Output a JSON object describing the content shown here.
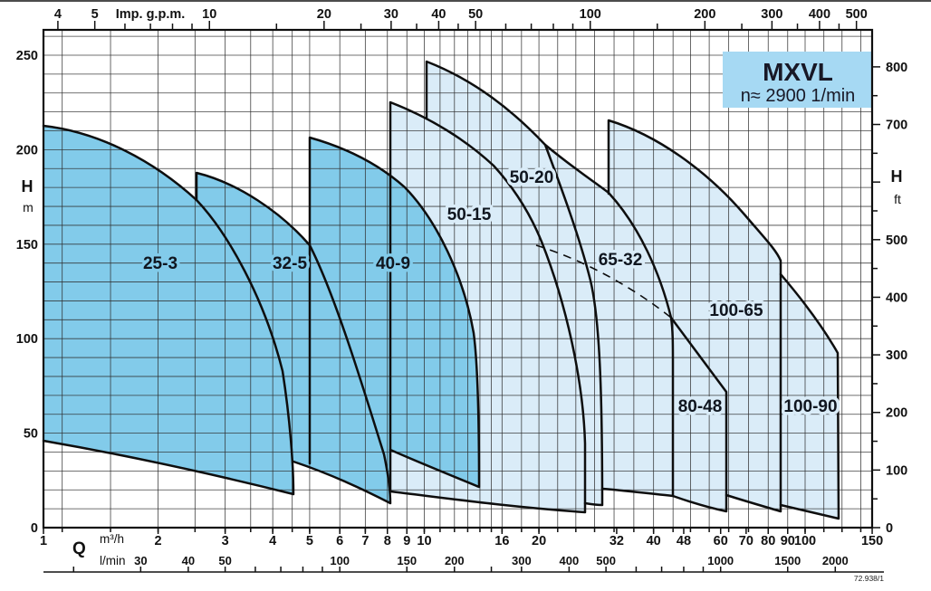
{
  "legend": {
    "model": "MXVL",
    "speed": "n≈ 2900 1/min"
  },
  "footnote": "72.938/1",
  "side_labels": {
    "left_symbol": "H",
    "left_unit": "m",
    "right_symbol": "H",
    "right_unit": "ft",
    "flow_symbol": "Q",
    "flow_unit_1": "m³/h",
    "flow_unit_2": "l/min",
    "top_unit": "Imp. g.p.m."
  },
  "colors": {
    "dark_fill": "#82cbea",
    "light_fill": "#daecf8",
    "legend_bg": "#a6d9f3",
    "line": "#0e0e0e"
  },
  "chart_data": {
    "type": "area",
    "title": "MXVL",
    "subtitle": "n≈ 2900 1/min",
    "x_axis": {
      "label": "Q",
      "units": [
        "m³/h",
        "l/min",
        "Imp. g.p.m."
      ],
      "scale": "log",
      "range_m3h": [
        1,
        150
      ]
    },
    "y_axis": {
      "label": "H",
      "units": [
        "m",
        "ft"
      ],
      "scale": "linear",
      "range_m": [
        0,
        263
      ],
      "range_ft": [
        0,
        800
      ]
    },
    "series": [
      {
        "name": "25-3",
        "group": "dark",
        "q_m3h": [
          1,
          4.5
        ],
        "h_m": [
          18,
          213
        ]
      },
      {
        "name": "32-5",
        "group": "dark",
        "q_m3h": [
          2.5,
          8.1
        ],
        "h_m": [
          13,
          188
        ]
      },
      {
        "name": "40-9",
        "group": "dark",
        "q_m3h": [
          5,
          13.9
        ],
        "h_m": [
          22,
          206
        ]
      },
      {
        "name": "50-15",
        "group": "light",
        "q_m3h": [
          8.1,
          26.3
        ],
        "h_m": [
          8,
          225
        ]
      },
      {
        "name": "50-20",
        "group": "light",
        "q_m3h": [
          10.1,
          29.3
        ],
        "h_m": [
          12,
          247
        ]
      },
      {
        "name": "65-32",
        "group": "light",
        "q_m3h": [
          20.6,
          44.9
        ],
        "h_m": [
          17,
          202
        ]
      },
      {
        "name": "100-65",
        "group": "light",
        "q_m3h": [
          30.5,
          86.4
        ],
        "h_m": [
          9,
          216
        ]
      },
      {
        "name": "80-48",
        "group": "light",
        "q_m3h": [
          44.9,
          62
        ],
        "h_m": [
          9,
          112
        ]
      },
      {
        "name": "100-90",
        "group": "light",
        "q_m3h": [
          86.4,
          122.5
        ],
        "h_m": [
          5,
          134
        ]
      }
    ],
    "axes_ticks": {
      "top_gpm_major": [
        4,
        5,
        10,
        20,
        30,
        40,
        50,
        100,
        200,
        300,
        400,
        500
      ],
      "top_gpm_minor": [
        6,
        7,
        8,
        9,
        15,
        25,
        35,
        45,
        60,
        70,
        80,
        90,
        150,
        250,
        350,
        450
      ],
      "left_m": [
        0,
        50,
        100,
        150,
        200,
        250
      ],
      "right_ft": [
        0,
        100,
        200,
        300,
        400,
        500,
        700,
        800
      ],
      "bottom_m3h": [
        1,
        2,
        3,
        4,
        5,
        6,
        7,
        8,
        9,
        10,
        16,
        20,
        32,
        40,
        48,
        60,
        70,
        80,
        90,
        100,
        150
      ],
      "bottom_lmin": [
        30,
        40,
        50,
        100,
        150,
        200,
        300,
        400,
        500,
        1000,
        1500,
        2000
      ]
    },
    "layout": {
      "grid": true,
      "h_grid_step_m": 10,
      "q_gridlines": [
        1.12,
        1.5,
        2,
        2.5,
        3,
        3.5,
        4,
        4.5,
        5,
        6,
        7,
        8,
        9,
        10,
        11,
        12,
        13,
        14,
        15,
        16,
        18,
        20,
        22.4,
        25,
        28,
        31.5,
        35.5,
        40,
        45,
        50,
        56,
        63,
        71,
        80,
        90,
        100,
        112,
        125,
        140
      ],
      "lmin_ticks": [
        20,
        30,
        40,
        50,
        60,
        70,
        80,
        90,
        100,
        150,
        200,
        250,
        300,
        400,
        500,
        600,
        700,
        800,
        900,
        1000,
        1500,
        2000
      ],
      "ft_minor_step": 50,
      "legend_position": "top-right"
    }
  }
}
